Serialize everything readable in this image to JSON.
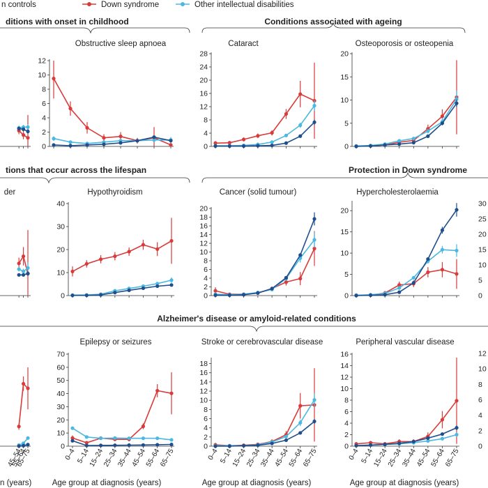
{
  "legend": {
    "items": [
      {
        "label": "n controls",
        "color": "#1f4e8c"
      },
      {
        "label": "Down syndrome",
        "color": "#d93a3a"
      },
      {
        "label": "Other intellectual disabilities",
        "color": "#4ab8e0"
      }
    ]
  },
  "sections": [
    {
      "label": "ditions with onset in childhood"
    },
    {
      "label": "Conditions associated with ageing"
    },
    {
      "label": "tions that occur across the lifespan"
    },
    {
      "label": "Protection in Down syndrome"
    },
    {
      "label": "Alzheimer's disease or amyloid-related conditions"
    }
  ],
  "age_groups": [
    "0–4",
    "5–14",
    "15–24",
    "25–34",
    "35–44",
    "45–54",
    "55–64",
    "65–75"
  ],
  "chart_data": [
    {
      "id": "p-osa",
      "type": "line",
      "title": "Obstructive sleep apnoea",
      "ylim": [
        0,
        12
      ],
      "yticks": [
        0,
        2,
        4,
        6,
        8,
        10,
        12
      ],
      "series": [
        {
          "name": "Down syndrome",
          "color": "#d93a3a",
          "values": [
            9.5,
            5.3,
            2.6,
            1.2,
            1.4,
            0.8,
            1.2,
            0.2
          ],
          "err": [
            2.8,
            1.0,
            0.8,
            0.5,
            0.6,
            0.4,
            1.5,
            0.6
          ]
        },
        {
          "name": "Other intellectual disabilities",
          "color": "#4ab8e0",
          "values": [
            1.1,
            0.6,
            0.4,
            0.6,
            0.8,
            0.8,
            0.9,
            0.9
          ],
          "err": [
            0.3,
            0.2,
            0.2,
            0.2,
            0.2,
            0.2,
            0.3,
            0.4
          ]
        },
        {
          "name": "controls",
          "color": "#1f4e8c",
          "values": [
            0.2,
            0.1,
            0.2,
            0.3,
            0.5,
            0.8,
            1.3,
            0.8
          ],
          "err": [
            0.1,
            0.1,
            0.1,
            0.1,
            0.1,
            0.1,
            0.2,
            0.2
          ]
        }
      ]
    },
    {
      "id": "p-cataract",
      "type": "line",
      "title": "Cataract",
      "ylim": [
        0,
        28
      ],
      "yticks": [
        0,
        4,
        8,
        12,
        16,
        20,
        24,
        28
      ],
      "series": [
        {
          "name": "Down syndrome",
          "color": "#d93a3a",
          "values": [
            1.0,
            1.1,
            2.1,
            3.2,
            4.1,
            9.8,
            15.8,
            13.8
          ],
          "err": [
            0.6,
            0.5,
            0.6,
            0.7,
            0.8,
            1.5,
            4.0,
            11.5
          ]
        },
        {
          "name": "Other intellectual disabilities",
          "color": "#4ab8e0",
          "values": [
            0.2,
            0.2,
            0.3,
            0.6,
            1.3,
            3.3,
            6.4,
            12.3
          ],
          "err": [
            0.1,
            0.1,
            0.1,
            0.2,
            0.2,
            0.4,
            0.8,
            1.6
          ]
        },
        {
          "name": "controls",
          "color": "#1f4e8c",
          "values": [
            0.1,
            0.1,
            0.1,
            0.2,
            0.3,
            1.0,
            3.1,
            7.3
          ],
          "err": [
            0.05,
            0.05,
            0.05,
            0.05,
            0.1,
            0.1,
            0.2,
            0.8
          ]
        }
      ]
    },
    {
      "id": "p-osteo",
      "type": "line",
      "title": "Osteoporosis or osteopenia",
      "ylim": [
        0,
        20
      ],
      "yticks": [
        0,
        5,
        10,
        15,
        20
      ],
      "series": [
        {
          "name": "Down syndrome",
          "color": "#d93a3a",
          "values": [
            0.1,
            0.1,
            0.3,
            0.9,
            1.3,
            3.8,
            6.5,
            10.6
          ],
          "err": [
            0.2,
            0.2,
            0.3,
            0.4,
            0.5,
            0.9,
            1.5,
            8.0
          ]
        },
        {
          "name": "Other intellectual disabilities",
          "color": "#4ab8e0",
          "values": [
            0.1,
            0.2,
            0.5,
            1.2,
            1.7,
            3.3,
            5.3,
            10.2
          ],
          "err": [
            0.1,
            0.1,
            0.1,
            0.2,
            0.3,
            0.5,
            0.8,
            1.8
          ]
        },
        {
          "name": "controls",
          "color": "#1f4e8c",
          "values": [
            0.0,
            0.1,
            0.3,
            0.5,
            0.8,
            2.2,
            5.0,
            9.3
          ],
          "err": [
            0.05,
            0.05,
            0.05,
            0.05,
            0.1,
            0.1,
            0.3,
            0.8
          ]
        }
      ]
    },
    {
      "id": "p-hypothy",
      "type": "line",
      "title": "Hypothyroidism",
      "ylim": [
        0,
        40
      ],
      "yticks": [
        0,
        10,
        20,
        30,
        40
      ],
      "series": [
        {
          "name": "Down syndrome",
          "color": "#d93a3a",
          "values": [
            10.5,
            13.8,
            15.8,
            17.1,
            19.1,
            22.1,
            20.2,
            23.8
          ],
          "err": [
            2.2,
            1.6,
            1.8,
            1.8,
            1.8,
            2.2,
            3.0,
            10.0
          ]
        },
        {
          "name": "Other intellectual disabilities",
          "color": "#4ab8e0",
          "values": [
            0.2,
            0.3,
            0.6,
            2.1,
            3.1,
            4.1,
            5.2,
            6.7
          ],
          "err": [
            0.1,
            0.1,
            0.2,
            0.3,
            0.4,
            0.5,
            0.7,
            1.2
          ]
        },
        {
          "name": "controls",
          "color": "#1f4e8c",
          "values": [
            0.1,
            0.1,
            0.3,
            1.3,
            2.3,
            3.2,
            4.1,
            4.6
          ],
          "err": [
            0.05,
            0.05,
            0.1,
            0.1,
            0.1,
            0.2,
            0.3,
            0.5
          ]
        }
      ]
    },
    {
      "id": "p-cancer",
      "type": "line",
      "title": "Cancer (solid tumour)",
      "ylim": [
        0,
        20
      ],
      "yticks": [
        0,
        2,
        4,
        6,
        8,
        10,
        12,
        14,
        16,
        18,
        20
      ],
      "series": [
        {
          "name": "Down syndrome",
          "color": "#d93a3a",
          "values": [
            1.1,
            0.3,
            0.3,
            0.6,
            1.6,
            3.1,
            3.9,
            10.8
          ],
          "err": [
            0.8,
            0.3,
            0.3,
            0.3,
            0.5,
            0.8,
            1.5,
            4.0
          ]
        },
        {
          "name": "Other intellectual disabilities",
          "color": "#4ab8e0",
          "values": [
            0.3,
            0.2,
            0.3,
            0.7,
            1.4,
            3.9,
            8.6,
            12.8
          ],
          "err": [
            0.2,
            0.1,
            0.1,
            0.2,
            0.3,
            0.5,
            1.0,
            1.8
          ]
        },
        {
          "name": "controls",
          "color": "#1f4e8c",
          "values": [
            0.1,
            0.1,
            0.2,
            0.6,
            1.6,
            4.1,
            9.3,
            17.6
          ],
          "err": [
            0.05,
            0.05,
            0.05,
            0.1,
            0.1,
            0.2,
            0.4,
            1.5
          ]
        }
      ]
    },
    {
      "id": "p-hyperchol",
      "type": "line",
      "title": "Hypercholesterolaemia",
      "ylim": [
        0,
        22
      ],
      "yticks": [
        0,
        5,
        10,
        15,
        20
      ],
      "series": [
        {
          "name": "Down syndrome",
          "color": "#d93a3a",
          "values": [
            0.1,
            0.1,
            0.6,
            2.5,
            2.8,
            5.5,
            6.1,
            5.1
          ],
          "err": [
            0.1,
            0.2,
            0.5,
            0.8,
            0.8,
            1.2,
            1.8,
            3.5
          ]
        },
        {
          "name": "Other intellectual disabilities",
          "color": "#4ab8e0",
          "values": [
            0.1,
            0.2,
            0.5,
            1.8,
            4.2,
            8.1,
            10.8,
            10.6
          ],
          "err": [
            0.1,
            0.1,
            0.1,
            0.2,
            0.4,
            0.6,
            0.9,
            1.5
          ]
        },
        {
          "name": "controls",
          "color": "#1f4e8c",
          "values": [
            0.0,
            0.1,
            0.2,
            0.8,
            3.0,
            8.6,
            15.4,
            20.2
          ],
          "err": [
            0.05,
            0.05,
            0.05,
            0.1,
            0.2,
            0.4,
            0.8,
            1.6
          ]
        }
      ]
    },
    {
      "id": "p-epilepsy",
      "type": "line",
      "title": "Epilepsy or seizures",
      "ylim": [
        0,
        70
      ],
      "yticks": [
        0,
        10,
        20,
        30,
        40,
        50,
        60,
        70
      ],
      "series": [
        {
          "name": "Down syndrome",
          "color": "#d93a3a",
          "values": [
            6.2,
            2.6,
            6.1,
            5.2,
            5.2,
            15.1,
            42.2,
            40.2
          ],
          "err": [
            2.0,
            1.0,
            1.3,
            1.3,
            1.5,
            2.2,
            5.0,
            16.0
          ]
        },
        {
          "name": "Other intellectual disabilities",
          "color": "#4ab8e0",
          "values": [
            13.7,
            7.0,
            6.0,
            6.2,
            6.0,
            6.0,
            6.0,
            4.8
          ],
          "err": [
            1.0,
            0.6,
            0.5,
            0.5,
            0.5,
            0.5,
            0.7,
            1.0
          ]
        },
        {
          "name": "controls",
          "color": "#1f4e8c",
          "values": [
            4.1,
            0.5,
            0.6,
            0.7,
            0.8,
            0.9,
            1.1,
            1.3
          ],
          "err": [
            0.3,
            0.1,
            0.1,
            0.1,
            0.1,
            0.1,
            0.2,
            0.2
          ]
        }
      ]
    },
    {
      "id": "p-stroke",
      "type": "line",
      "title": "Stroke or cerebrovascular disease",
      "ylim": [
        0,
        19
      ],
      "yticks": [
        0,
        2,
        4,
        6,
        8,
        10,
        12,
        14,
        16,
        18
      ],
      "series": [
        {
          "name": "Down syndrome",
          "color": "#d93a3a",
          "values": [
            0.3,
            0.1,
            0.2,
            0.4,
            1.0,
            2.5,
            8.8,
            9.0
          ],
          "err": [
            0.4,
            0.2,
            0.2,
            0.3,
            0.5,
            0.8,
            2.8,
            8.0
          ]
        },
        {
          "name": "Other intellectual disabilities",
          "color": "#4ab8e0",
          "values": [
            0.1,
            0.1,
            0.1,
            0.3,
            0.9,
            2.1,
            5.1,
            10.1
          ],
          "err": [
            0.05,
            0.05,
            0.1,
            0.1,
            0.2,
            0.3,
            0.7,
            1.5
          ]
        },
        {
          "name": "controls",
          "color": "#1f4e8c",
          "values": [
            0.0,
            0.0,
            0.1,
            0.2,
            0.6,
            1.3,
            2.9,
            5.4
          ],
          "err": [
            0.05,
            0.05,
            0.05,
            0.05,
            0.1,
            0.1,
            0.2,
            0.5
          ]
        }
      ]
    },
    {
      "id": "p-pvd",
      "type": "line",
      "title": "Peripheral vascular disease",
      "ylim": [
        0,
        16
      ],
      "yticks": [
        0,
        2,
        4,
        6,
        8,
        10,
        12,
        14,
        16
      ],
      "series": [
        {
          "name": "Down syndrome",
          "color": "#d93a3a",
          "values": [
            0.4,
            0.6,
            0.4,
            0.8,
            0.8,
            1.7,
            4.6,
            7.9
          ],
          "err": [
            0.3,
            0.3,
            0.3,
            0.4,
            0.4,
            0.7,
            1.5,
            7.5
          ]
        },
        {
          "name": "Other intellectual disabilities",
          "color": "#4ab8e0",
          "values": [
            0.1,
            0.2,
            0.3,
            0.4,
            0.6,
            0.9,
            1.3,
            2.0
          ],
          "err": [
            0.05,
            0.05,
            0.1,
            0.1,
            0.1,
            0.1,
            0.2,
            0.4
          ]
        },
        {
          "name": "controls",
          "color": "#1f4e8c",
          "values": [
            0.1,
            0.2,
            0.3,
            0.5,
            0.8,
            1.4,
            2.1,
            3.2
          ],
          "err": [
            0.05,
            0.05,
            0.05,
            0.05,
            0.1,
            0.1,
            0.2,
            0.4
          ]
        }
      ]
    },
    {
      "id": "p-lifespan-left",
      "type": "line",
      "title": "der",
      "ylim": [
        0,
        40
      ],
      "yticks": [],
      "series": [
        {
          "name": "Down syndrome",
          "color": "#d93a3a",
          "values": [
            null,
            null,
            null,
            null,
            null,
            14.0,
            17.1,
            9.5
          ],
          "err": [
            0,
            0,
            0,
            0,
            0,
            2.5,
            4.0,
            19.0
          ]
        },
        {
          "name": "Other intellectual disabilities",
          "color": "#4ab8e0",
          "values": [
            null,
            null,
            null,
            null,
            null,
            11.5,
            10.5,
            12.0
          ],
          "err": [
            0,
            0,
            0,
            0,
            0,
            1.0,
            1.2,
            2.5
          ]
        },
        {
          "name": "controls",
          "color": "#1f4e8c",
          "values": [
            null,
            null,
            null,
            null,
            null,
            9.0,
            9.0,
            9.6
          ],
          "err": [
            0,
            0,
            0,
            0,
            0,
            0.5,
            0.7,
            1.0
          ]
        }
      ]
    },
    {
      "id": "p-childhood-left",
      "type": "line",
      "title": "",
      "ylim": [
        0,
        12
      ],
      "yticks": [],
      "series": [
        {
          "name": "Down syndrome",
          "color": "#d93a3a",
          "values": [
            null,
            null,
            null,
            null,
            null,
            2.2,
            1.6,
            1.2
          ],
          "err": [
            0,
            0,
            0,
            0,
            0,
            0.5,
            0.6,
            3.2
          ]
        },
        {
          "name": "Other intellectual disabilities",
          "color": "#4ab8e0",
          "values": [
            null,
            null,
            null,
            null,
            null,
            2.6,
            2.7,
            2.7
          ],
          "err": [
            0,
            0,
            0,
            0,
            0,
            0.3,
            0.3,
            0.4
          ]
        },
        {
          "name": "controls",
          "color": "#1f4e8c",
          "values": [
            null,
            null,
            null,
            null,
            null,
            2.5,
            2.4,
            2.1
          ],
          "err": [
            0,
            0,
            0,
            0,
            0,
            0.2,
            0.2,
            0.3
          ]
        }
      ]
    },
    {
      "id": "p-alz-left",
      "type": "line",
      "title": "",
      "ylim": [
        0,
        70
      ],
      "yticks": [],
      "series": [
        {
          "name": "Down syndrome",
          "color": "#d93a3a",
          "values": [
            null,
            null,
            null,
            null,
            null,
            15.0,
            47.5,
            44.0
          ],
          "err": [
            0,
            0,
            0,
            0,
            0,
            2.5,
            5.5,
            16.0
          ]
        },
        {
          "name": "Other intellectual disabilities",
          "color": "#4ab8e0",
          "values": [
            null,
            null,
            null,
            null,
            null,
            0.8,
            2.2,
            6.2
          ],
          "err": [
            0,
            0,
            0,
            0,
            0,
            0.2,
            0.4,
            0.8
          ]
        },
        {
          "name": "controls",
          "color": "#1f4e8c",
          "values": [
            null,
            null,
            null,
            null,
            null,
            0.1,
            0.4,
            1.2
          ],
          "err": [
            0,
            0,
            0,
            0,
            0,
            0.05,
            0.1,
            0.2
          ]
        }
      ]
    }
  ],
  "right_axis_ticks": {
    "row2": [
      "30",
      "25",
      "20",
      "15",
      "10",
      "5",
      "0"
    ],
    "row3": [
      "12",
      "10",
      "8",
      "6",
      "4",
      "2",
      "0"
    ]
  },
  "x_axis_title": "Age group at diagnosis (years)",
  "x_axis_title_partial": "n (years)"
}
